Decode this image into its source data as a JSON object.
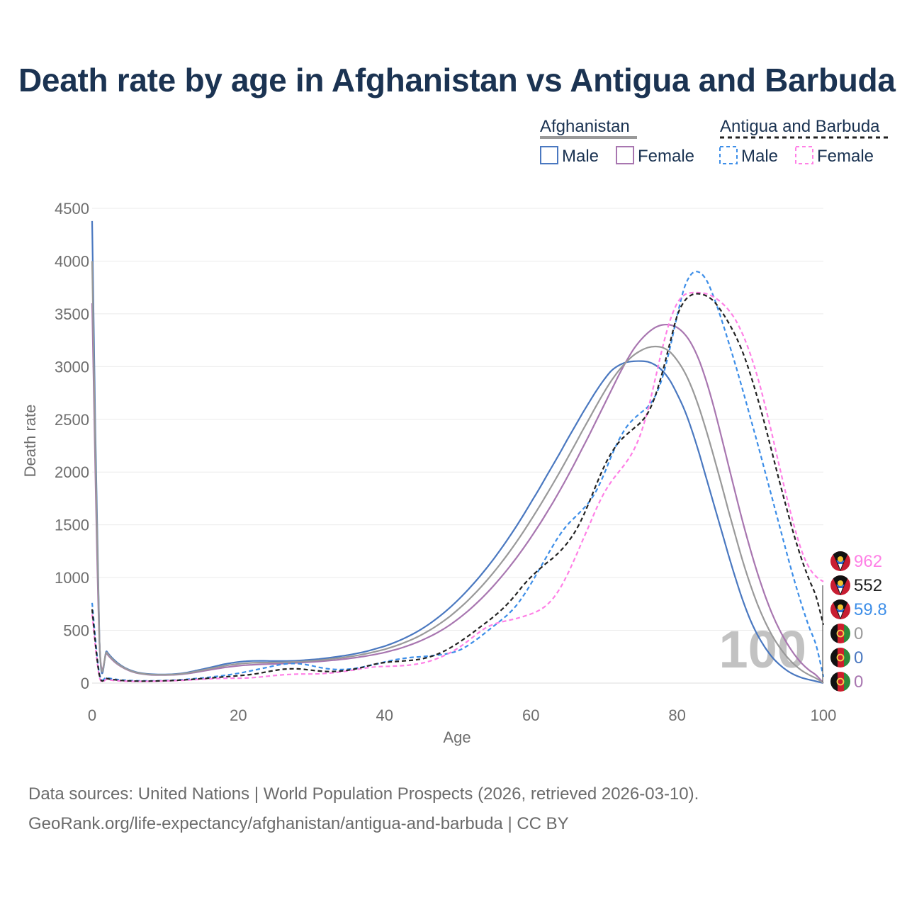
{
  "title": "Death rate by age in Afghanistan vs Antigua and Barbuda",
  "legend": {
    "groups": [
      {
        "name": "Afghanistan",
        "line_color": "#999999",
        "dashed": false,
        "items": [
          {
            "label": "Male",
            "color": "#4a78c0"
          },
          {
            "label": "Female",
            "color": "#a876b0"
          }
        ]
      },
      {
        "name": "Antigua and Barbuda",
        "line_color": "#222222",
        "dashed": true,
        "items": [
          {
            "label": "Male",
            "color": "#3d8ee8"
          },
          {
            "label": "Female",
            "color": "#ff80e6"
          }
        ]
      }
    ]
  },
  "footer": {
    "source": "Data sources: United Nations | World Population Prospects (2026, retrieved 2026-03-10).",
    "url": "GeoRank.org/life-expectancy/afghanistan/antigua-and-barbuda | CC BY"
  },
  "chart_data": {
    "type": "line",
    "xlabel": "Age",
    "ylabel": "Death rate",
    "xlim": [
      0,
      100
    ],
    "ylim": [
      0,
      4500
    ],
    "xticks": [
      0,
      20,
      40,
      60,
      80,
      100
    ],
    "yticks": [
      0,
      500,
      1000,
      1500,
      2000,
      2500,
      3000,
      3500,
      4000,
      4500
    ],
    "grid": true,
    "watermark": "100",
    "x": [
      0,
      1,
      2,
      3,
      4,
      5,
      6,
      7,
      8,
      9,
      10,
      11,
      12,
      13,
      14,
      15,
      16,
      17,
      18,
      19,
      20,
      21,
      22,
      23,
      24,
      25,
      26,
      27,
      28,
      29,
      30,
      31,
      32,
      33,
      34,
      35,
      36,
      37,
      38,
      39,
      40,
      41,
      42,
      43,
      44,
      45,
      46,
      47,
      48,
      49,
      50,
      51,
      52,
      53,
      54,
      55,
      56,
      57,
      58,
      59,
      60,
      61,
      62,
      63,
      64,
      65,
      66,
      67,
      68,
      69,
      70,
      71,
      72,
      73,
      74,
      75,
      76,
      77,
      78,
      79,
      80,
      81,
      82,
      83,
      84,
      85,
      86,
      87,
      88,
      89,
      90,
      91,
      92,
      93,
      94,
      95,
      96,
      97,
      98,
      99,
      100
    ],
    "series": [
      {
        "name": "Afghanistan Male",
        "country": "Afghanistan",
        "sex": "Male",
        "color": "#4a78c0",
        "dashed": false,
        "end_value": "0",
        "values": [
          4380,
          420,
          300,
          220,
          165,
          128,
          105,
          92,
          85,
          82,
          82,
          84,
          90,
          100,
          115,
          130,
          146,
          162,
          178,
          190,
          200,
          207,
          210,
          211,
          210,
          209,
          209,
          210,
          213,
          217,
          222,
          228,
          236,
          245,
          255,
          266,
          278,
          293,
          310,
          330,
          350,
          375,
          403,
          435,
          470,
          510,
          555,
          605,
          660,
          720,
          785,
          855,
          930,
          1010,
          1095,
          1185,
          1280,
          1380,
          1485,
          1595,
          1710,
          1825,
          1945,
          2065,
          2185,
          2310,
          2430,
          2550,
          2665,
          2775,
          2875,
          2960,
          3010,
          3040,
          3050,
          3052,
          3045,
          3015,
          2960,
          2870,
          2740,
          2590,
          2400,
          2180,
          1940,
          1700,
          1460,
          1220,
          990,
          780,
          600,
          455,
          340,
          245,
          175,
          120,
          80,
          52,
          33,
          17,
          0
        ]
      },
      {
        "name": "Afghanistan Female",
        "country": "Afghanistan",
        "sex": "Female",
        "color": "#a876b0",
        "dashed": false,
        "end_value": "0",
        "values": [
          3600,
          400,
          280,
          205,
          155,
          120,
          97,
          85,
          78,
          76,
          76,
          78,
          82,
          90,
          100,
          112,
          124,
          136,
          147,
          156,
          164,
          170,
          174,
          177,
          180,
          182,
          185,
          188,
          192,
          196,
          200,
          205,
          211,
          217,
          224,
          232,
          241,
          251,
          263,
          276,
          290,
          308,
          327,
          350,
          375,
          403,
          435,
          470,
          510,
          555,
          605,
          660,
          720,
          785,
          855,
          930,
          1010,
          1095,
          1185,
          1280,
          1380,
          1485,
          1595,
          1710,
          1830,
          1955,
          2085,
          2220,
          2355,
          2495,
          2635,
          2775,
          2915,
          3045,
          3160,
          3250,
          3320,
          3370,
          3395,
          3395,
          3370,
          3310,
          3210,
          3060,
          2860,
          2620,
          2350,
          2070,
          1790,
          1520,
          1270,
          1040,
          835,
          655,
          505,
          380,
          275,
          190,
          125,
          75,
          0
        ]
      },
      {
        "name": "Antigua and Barbuda Male",
        "country": "Antigua and Barbuda",
        "sex": "Male",
        "color": "#3d8ee8",
        "dashed": true,
        "end_value": "59.8",
        "values": [
          760,
          90,
          52,
          38,
          30,
          25,
          22,
          21,
          21,
          22,
          24,
          27,
          31,
          36,
          42,
          48,
          55,
          63,
          72,
          82,
          93,
          106,
          120,
          135,
          150,
          165,
          178,
          185,
          185,
          178,
          165,
          150,
          138,
          130,
          128,
          132,
          140,
          152,
          167,
          182,
          200,
          215,
          228,
          238,
          245,
          250,
          256,
          263,
          272,
          285,
          305,
          340,
          385,
          435,
          490,
          545,
          600,
          660,
          735,
          830,
          940,
          1060,
          1180,
          1300,
          1410,
          1500,
          1570,
          1640,
          1720,
          1830,
          1980,
          2150,
          2300,
          2420,
          2500,
          2560,
          2620,
          2720,
          2900,
          3170,
          3480,
          3750,
          3880,
          3895,
          3820,
          3660,
          3460,
          3240,
          3010,
          2770,
          2520,
          2270,
          2010,
          1750,
          1490,
          1230,
          980,
          750,
          540,
          360,
          59.8
        ]
      },
      {
        "name": "Antigua and Barbuda Female",
        "country": "Antigua and Barbuda",
        "sex": "Female",
        "color": "#ff80e6",
        "dashed": true,
        "end_value": "962",
        "values": [
          650,
          60,
          35,
          25,
          20,
          17,
          16,
          16,
          17,
          18,
          20,
          22,
          25,
          28,
          32,
          36,
          40,
          43,
          45,
          46,
          46,
          48,
          52,
          58,
          65,
          72,
          78,
          82,
          85,
          86,
          86,
          88,
          92,
          98,
          106,
          116,
          127,
          138,
          148,
          155,
          158,
          160,
          163,
          168,
          176,
          188,
          205,
          228,
          256,
          290,
          330,
          378,
          432,
          485,
          530,
          560,
          580,
          595,
          612,
          632,
          655,
          685,
          730,
          800,
          900,
          1030,
          1180,
          1340,
          1500,
          1660,
          1800,
          1910,
          2000,
          2090,
          2200,
          2360,
          2590,
          2880,
          3180,
          3430,
          3600,
          3680,
          3700,
          3700,
          3690,
          3660,
          3610,
          3540,
          3440,
          3300,
          3120,
          2900,
          2640,
          2350,
          2050,
          1760,
          1490,
          1260,
          1100,
          1010,
          962
        ]
      },
      {
        "name": "Antigua and Barbuda (both sexes)",
        "country": "Antigua and Barbuda",
        "sex": "Both",
        "color": "#222222",
        "dashed": true,
        "end_value": "552",
        "values": [
          700,
          75,
          44,
          32,
          25,
          21,
          19,
          18,
          19,
          20,
          22,
          24,
          28,
          32,
          37,
          42,
          47,
          53,
          59,
          64,
          70,
          76,
          84,
          95,
          108,
          120,
          130,
          135,
          135,
          130,
          122,
          115,
          110,
          110,
          114,
          122,
          134,
          150,
          168,
          184,
          195,
          202,
          207,
          212,
          218,
          228,
          245,
          268,
          298,
          335,
          378,
          425,
          475,
          528,
          580,
          635,
          695,
          765,
          845,
          930,
          1005,
          1070,
          1130,
          1185,
          1250,
          1330,
          1430,
          1560,
          1720,
          1890,
          2050,
          2180,
          2280,
          2350,
          2410,
          2470,
          2560,
          2720,
          2950,
          3220,
          3480,
          3620,
          3680,
          3690,
          3670,
          3620,
          3530,
          3420,
          3290,
          3130,
          2930,
          2700,
          2450,
          2180,
          1910,
          1650,
          1400,
          1180,
          990,
          820,
          552
        ]
      },
      {
        "name": "Afghanistan (both sexes)",
        "country": "Afghanistan",
        "sex": "Both",
        "color": "#999999",
        "dashed": false,
        "end_value": "0",
        "values": [
          4000,
          410,
          290,
          212,
          160,
          124,
          101,
          88,
          81,
          79,
          79,
          81,
          86,
          95,
          108,
          121,
          135,
          149,
          162,
          173,
          182,
          188,
          192,
          194,
          195,
          196,
          197,
          199,
          202,
          206,
          211,
          216,
          223,
          231,
          239,
          249,
          259,
          272,
          286,
          303,
          320,
          341,
          365,
          392,
          422,
          456,
          495,
          537,
          585,
          637,
          695,
          757,
          825,
          897,
          975,
          1057,
          1145,
          1237,
          1335,
          1437,
          1545,
          1655,
          1770,
          1887,
          2007,
          2132,
          2257,
          2385,
          2510,
          2635,
          2755,
          2865,
          2960,
          3040,
          3105,
          3150,
          3180,
          3190,
          3180,
          3140,
          3060,
          2950,
          2800,
          2610,
          2390,
          2150,
          1900,
          1640,
          1390,
          1150,
          935,
          745,
          585,
          450,
          340,
          250,
          178,
          121,
          79,
          46,
          0
        ]
      }
    ]
  }
}
